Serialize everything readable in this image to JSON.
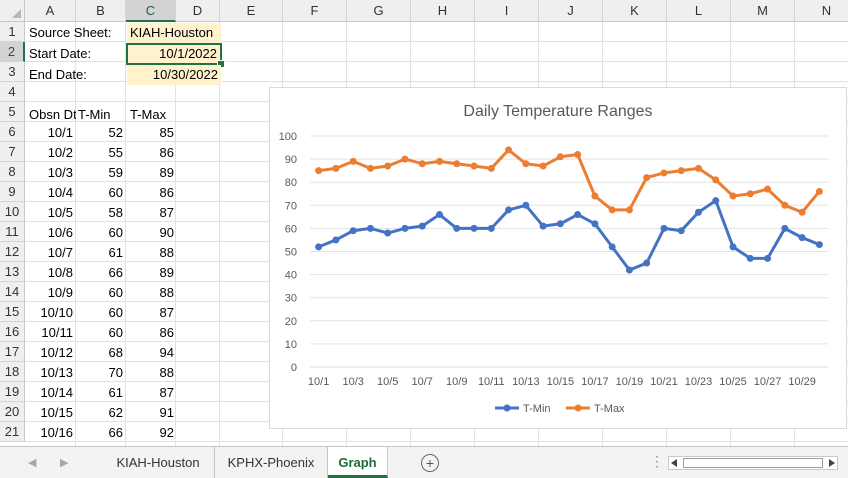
{
  "columns": [
    "A",
    "B",
    "C",
    "D",
    "E",
    "F",
    "G",
    "H",
    "I",
    "J",
    "K",
    "L",
    "M",
    "N"
  ],
  "selected_column": "C",
  "rows": [
    "1",
    "2",
    "3",
    "4",
    "5",
    "6",
    "7",
    "8",
    "9",
    "10",
    "11",
    "12",
    "13",
    "14",
    "15",
    "16",
    "17",
    "18",
    "19",
    "20",
    "21"
  ],
  "selected_row": "2",
  "info": {
    "source_label": "Source Sheet:",
    "source_value": "KIAH-Houston",
    "start_label": "Start Date:",
    "start_value": "10/1/2022",
    "end_label": "End Date:",
    "end_value": "10/30/2022"
  },
  "table": {
    "headers": [
      "Obsn Dt",
      "T-Min",
      "T-Max"
    ],
    "rows": [
      [
        "10/1",
        "52",
        "85"
      ],
      [
        "10/2",
        "55",
        "86"
      ],
      [
        "10/3",
        "59",
        "89"
      ],
      [
        "10/4",
        "60",
        "86"
      ],
      [
        "10/5",
        "58",
        "87"
      ],
      [
        "10/6",
        "60",
        "90"
      ],
      [
        "10/7",
        "61",
        "88"
      ],
      [
        "10/8",
        "66",
        "89"
      ],
      [
        "10/9",
        "60",
        "88"
      ],
      [
        "10/10",
        "60",
        "87"
      ],
      [
        "10/11",
        "60",
        "86"
      ],
      [
        "10/12",
        "68",
        "94"
      ],
      [
        "10/13",
        "70",
        "88"
      ],
      [
        "10/14",
        "61",
        "87"
      ],
      [
        "10/15",
        "62",
        "91"
      ],
      [
        "10/16",
        "66",
        "92"
      ]
    ]
  },
  "chart_data": {
    "type": "line",
    "title": "Daily Temperature Ranges",
    "categories": [
      "10/1",
      "10/2",
      "10/3",
      "10/4",
      "10/5",
      "10/6",
      "10/7",
      "10/8",
      "10/9",
      "10/10",
      "10/11",
      "10/12",
      "10/13",
      "10/14",
      "10/15",
      "10/16",
      "10/17",
      "10/18",
      "10/19",
      "10/20",
      "10/21",
      "10/22",
      "10/23",
      "10/24",
      "10/25",
      "10/26",
      "10/27",
      "10/28",
      "10/29",
      "10/30"
    ],
    "xtick_labels": [
      "10/1",
      "10/3",
      "10/5",
      "10/7",
      "10/9",
      "10/11",
      "10/13",
      "10/15",
      "10/17",
      "10/19",
      "10/21",
      "10/23",
      "10/25",
      "10/27",
      "10/29"
    ],
    "ylim": [
      0,
      100
    ],
    "yticks": [
      0,
      10,
      20,
      30,
      40,
      50,
      60,
      70,
      80,
      90,
      100
    ],
    "grid": true,
    "legend": "bottom",
    "series": [
      {
        "name": "T-Min",
        "color": "#4472c4",
        "values": [
          52,
          55,
          59,
          60,
          58,
          60,
          61,
          66,
          60,
          60,
          60,
          68,
          70,
          61,
          62,
          66,
          62,
          52,
          42,
          45,
          60,
          59,
          67,
          72,
          52,
          47,
          47,
          60,
          56,
          53
        ]
      },
      {
        "name": "T-Max",
        "color": "#ed7d31",
        "values": [
          85,
          86,
          89,
          86,
          87,
          90,
          88,
          89,
          88,
          87,
          86,
          94,
          88,
          87,
          91,
          92,
          74,
          68,
          68,
          82,
          84,
          85,
          86,
          81,
          74,
          75,
          77,
          70,
          67,
          76
        ]
      }
    ]
  },
  "sheet_tabs": [
    {
      "label": "KIAH-Houston",
      "active": false
    },
    {
      "label": "KPHX-Phoenix",
      "active": false
    },
    {
      "label": "Graph",
      "active": true
    }
  ],
  "add_sheet_symbol": "+",
  "tab_dots": "⋮"
}
